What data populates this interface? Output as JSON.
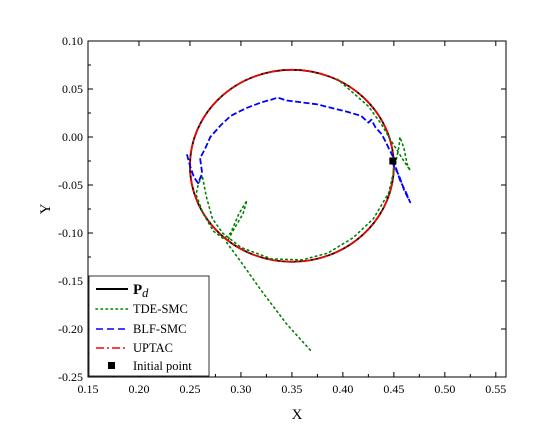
{
  "chart_data": {
    "type": "line",
    "xlabel": "X",
    "ylabel": "Y",
    "xlim": [
      0.15,
      0.56
    ],
    "ylim": [
      -0.25,
      0.1
    ],
    "xticks": [
      "0.15",
      "0.20",
      "0.25",
      "0.30",
      "0.35",
      "0.40",
      "0.45",
      "0.50",
      "0.55"
    ],
    "yticks": [
      "0.10",
      "0.05",
      "0.00",
      "-0.05",
      "-0.10",
      "-0.15",
      "-0.20",
      "-0.25"
    ],
    "xtick_values": [
      0.15,
      0.2,
      0.25,
      0.3,
      0.35,
      0.4,
      0.45,
      0.5,
      0.55
    ],
    "ytick_values": [
      0.1,
      0.05,
      0.0,
      -0.05,
      -0.1,
      -0.15,
      -0.2,
      -0.25
    ],
    "legend_position": "bottom-left",
    "circle": {
      "center": [
        0.35,
        -0.03
      ],
      "radius": 0.1
    },
    "series": [
      {
        "name": "P_d",
        "legend_main": "P",
        "legend_sub": "d",
        "color": "#000000",
        "style": "solid"
      },
      {
        "name": "TDE-SMC",
        "color": "#008000",
        "style": "dotted",
        "points": [
          [
            0.368,
            -0.222
          ],
          [
            0.345,
            -0.195
          ],
          [
            0.32,
            -0.16
          ],
          [
            0.3,
            -0.13
          ],
          [
            0.286,
            -0.11
          ],
          [
            0.292,
            -0.098
          ],
          [
            0.302,
            -0.08
          ],
          [
            0.306,
            -0.066
          ],
          [
            0.298,
            -0.08
          ],
          [
            0.29,
            -0.1
          ],
          [
            0.283,
            -0.106
          ],
          [
            0.273,
            -0.098
          ],
          [
            0.263,
            -0.08
          ],
          [
            0.256,
            -0.06
          ],
          [
            0.258,
            -0.05
          ],
          [
            0.262,
            -0.04
          ],
          [
            0.266,
            -0.062
          ],
          [
            0.272,
            -0.085
          ],
          [
            0.282,
            -0.1
          ],
          [
            0.3,
            -0.115
          ],
          [
            0.33,
            -0.127
          ],
          [
            0.36,
            -0.128
          ],
          [
            0.385,
            -0.121
          ],
          [
            0.41,
            -0.105
          ],
          [
            0.43,
            -0.085
          ],
          [
            0.445,
            -0.058
          ],
          [
            0.45,
            -0.035
          ],
          [
            0.455,
            -0.01
          ],
          [
            0.456,
            0.0
          ],
          [
            0.46,
            -0.012
          ],
          [
            0.463,
            -0.028
          ],
          [
            0.466,
            -0.035
          ],
          [
            0.458,
            -0.022
          ],
          [
            0.448,
            -0.005
          ],
          [
            0.438,
            0.013
          ],
          [
            0.425,
            0.032
          ],
          [
            0.41,
            0.046
          ],
          [
            0.395,
            0.06
          ]
        ]
      },
      {
        "name": "BLF-SMC",
        "color": "#0000ff",
        "style": "dashed",
        "points": [
          [
            0.247,
            -0.018
          ],
          [
            0.25,
            -0.03
          ],
          [
            0.254,
            -0.042
          ],
          [
            0.258,
            -0.048
          ],
          [
            0.262,
            -0.038
          ],
          [
            0.26,
            -0.022
          ],
          [
            0.265,
            -0.012
          ],
          [
            0.27,
            0.0
          ],
          [
            0.28,
            0.012
          ],
          [
            0.29,
            0.022
          ],
          [
            0.305,
            0.03
          ],
          [
            0.32,
            0.036
          ],
          [
            0.33,
            0.039
          ],
          [
            0.336,
            0.041
          ],
          [
            0.345,
            0.038
          ],
          [
            0.36,
            0.036
          ],
          [
            0.375,
            0.034
          ],
          [
            0.39,
            0.03
          ],
          [
            0.405,
            0.026
          ],
          [
            0.418,
            0.022
          ],
          [
            0.425,
            0.015
          ],
          [
            0.428,
            0.018
          ],
          [
            0.432,
            0.01
          ],
          [
            0.438,
            0.003
          ],
          [
            0.442,
            -0.005
          ],
          [
            0.445,
            -0.012
          ],
          [
            0.449,
            -0.02
          ],
          [
            0.452,
            -0.032
          ],
          [
            0.456,
            -0.045
          ],
          [
            0.462,
            -0.058
          ],
          [
            0.466,
            -0.068
          ],
          [
            0.46,
            -0.055
          ],
          [
            0.455,
            -0.04
          ],
          [
            0.45,
            -0.03
          ],
          [
            0.448,
            -0.025
          ]
        ]
      },
      {
        "name": "UPTAC",
        "color": "#ff0000",
        "style": "dashdot"
      }
    ],
    "initial_point": {
      "name": "Initial point",
      "x": 0.449,
      "y": -0.025,
      "marker": "square",
      "color": "#000000"
    }
  }
}
